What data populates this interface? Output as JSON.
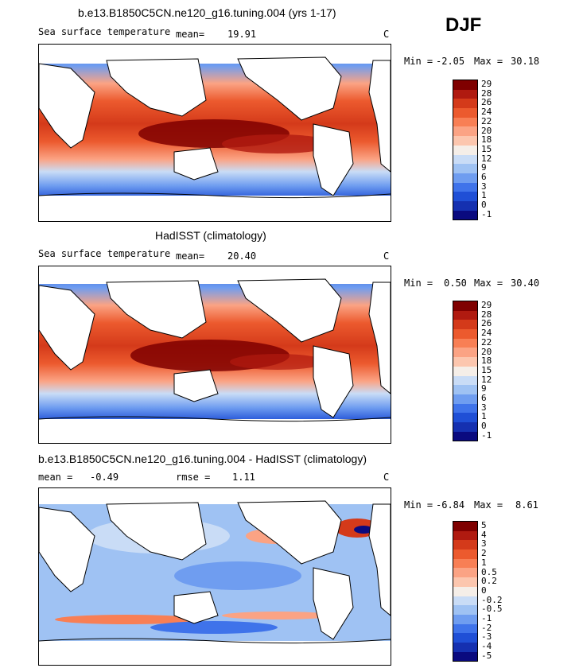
{
  "season": "DJF",
  "panels": [
    {
      "id": "model",
      "title": "b.e13.B1850C5CN.ne120_g16.tuning.004 (yrs 1-17)",
      "variable": "Sea surface temperature",
      "mean_label": "mean=",
      "mean_value": "19.91",
      "units": "C",
      "min_label": "Min =",
      "min_value": "-2.05",
      "max_label": "Max =",
      "max_value": "30.18",
      "legend": [
        "29",
        "28",
        "26",
        "24",
        "22",
        "20",
        "18",
        "15",
        "12",
        "9",
        "6",
        "3",
        "1",
        "0",
        "-1"
      ],
      "colors": [
        "#7f0000",
        "#b01a10",
        "#d43a1a",
        "#ec5a2e",
        "#f87f55",
        "#fba384",
        "#fcc6ae",
        "#f5eee8",
        "#c9dcf6",
        "#9fc2f3",
        "#6f9df0",
        "#3f73ea",
        "#1f4fd6",
        "#1530b0",
        "#0a0a7f"
      ]
    },
    {
      "id": "obs",
      "title": "HadISST (climatology)",
      "variable": "Sea surface temperature",
      "mean_label": "mean=",
      "mean_value": "20.40",
      "units": "C",
      "min_label": "Min =",
      "min_value": "0.50",
      "max_label": "Max =",
      "max_value": "30.40",
      "legend": [
        "29",
        "28",
        "26",
        "24",
        "22",
        "20",
        "18",
        "15",
        "12",
        "9",
        "6",
        "3",
        "1",
        "0",
        "-1"
      ],
      "colors": [
        "#7f0000",
        "#b01a10",
        "#d43a1a",
        "#ec5a2e",
        "#f87f55",
        "#fba384",
        "#fcc6ae",
        "#f5eee8",
        "#c9dcf6",
        "#9fc2f3",
        "#6f9df0",
        "#3f73ea",
        "#1f4fd6",
        "#1530b0",
        "#0a0a7f"
      ]
    },
    {
      "id": "diff",
      "title": "b.e13.B1850C5CN.ne120_g16.tuning.004 - HadISST (climatology)",
      "mean_label": "mean =",
      "mean_value": "-0.49",
      "rmse_label": "rmse =",
      "rmse_value": "1.11",
      "units": "C",
      "min_label": "Min =",
      "min_value": "-6.84",
      "max_label": "Max =",
      "max_value": "8.61",
      "legend": [
        "5",
        "4",
        "3",
        "2",
        "1",
        "0.5",
        "0.2",
        "0",
        "-0.2",
        "-0.5",
        "-1",
        "-2",
        "-3",
        "-4",
        "-5"
      ],
      "colors": [
        "#7f0000",
        "#b01a10",
        "#d43a1a",
        "#ec5a2e",
        "#f87f55",
        "#fba384",
        "#fcc6ae",
        "#f5eee8",
        "#c9dcf6",
        "#9fc2f3",
        "#6f9df0",
        "#3f73ea",
        "#1f4fd6",
        "#1530b0",
        "#0a0a7f"
      ]
    }
  ]
}
